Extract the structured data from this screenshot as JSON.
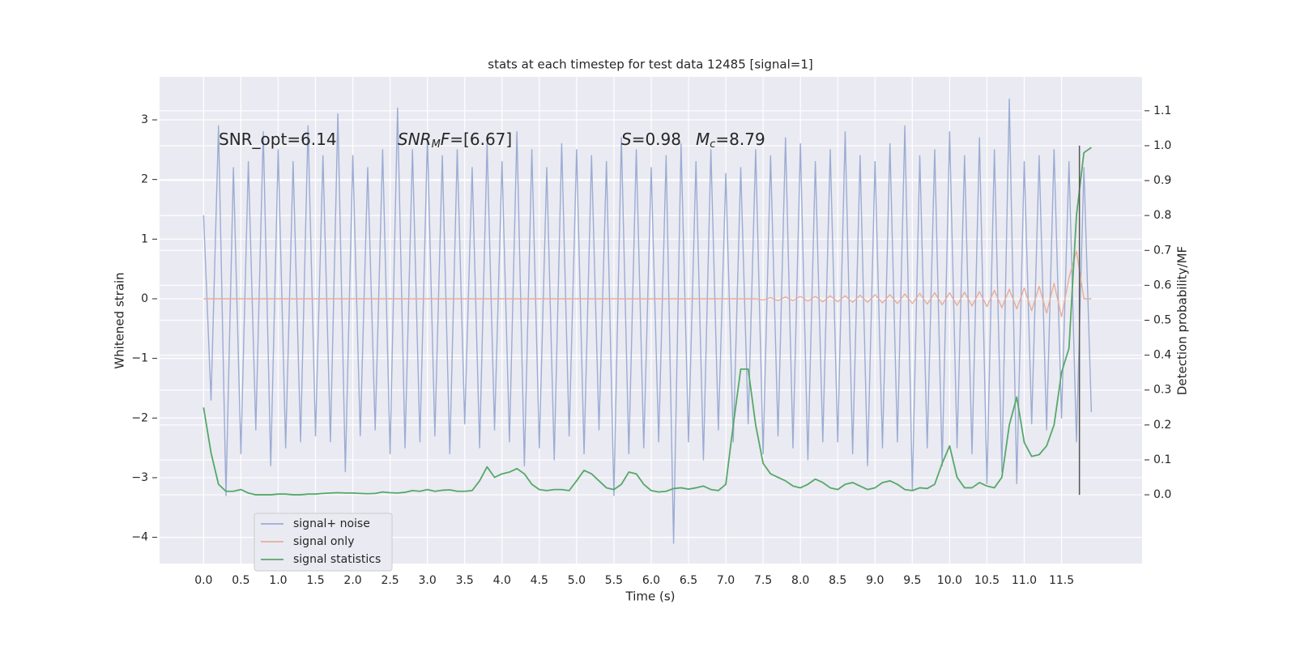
{
  "chart_data": {
    "type": "line",
    "title": "stats at each timestep for test data 12485 [signal=1]",
    "xlabel": "Time (s)",
    "ylabel": "Whitened strain",
    "y2label": "Detection probability/MF",
    "x": [
      0,
      0.1,
      0.2,
      0.3,
      0.4,
      0.5,
      0.6,
      0.7,
      0.8,
      0.9,
      1,
      1.1,
      1.2,
      1.3,
      1.4,
      1.5,
      1.6,
      1.7,
      1.8,
      1.9,
      2,
      2.1,
      2.2,
      2.3,
      2.4,
      2.5,
      2.6,
      2.7,
      2.8,
      2.9,
      3,
      3.1,
      3.2,
      3.3,
      3.4,
      3.5,
      3.6,
      3.7,
      3.8,
      3.9,
      4,
      4.1,
      4.2,
      4.3,
      4.4,
      4.5,
      4.6,
      4.7,
      4.8,
      4.9,
      5,
      5.1,
      5.2,
      5.3,
      5.4,
      5.5,
      5.6,
      5.7,
      5.8,
      5.9,
      6,
      6.1,
      6.2,
      6.3,
      6.4,
      6.5,
      6.6,
      6.7,
      6.8,
      6.9,
      7,
      7.1,
      7.2,
      7.3,
      7.4,
      7.5,
      7.6,
      7.7,
      7.8,
      7.9,
      8,
      8.1,
      8.2,
      8.3,
      8.4,
      8.5,
      8.6,
      8.7,
      8.8,
      8.9,
      9,
      9.1,
      9.2,
      9.3,
      9.4,
      9.5,
      9.6,
      9.7,
      9.8,
      9.9,
      10,
      10.1,
      10.2,
      10.3,
      10.4,
      10.5,
      10.6,
      10.7,
      10.8,
      10.9,
      11,
      11.1,
      11.2,
      11.3,
      11.4,
      11.5,
      11.6,
      11.7,
      11.8,
      11.9
    ],
    "series": [
      {
        "name": "signal+ noise",
        "color": "#9bacd3",
        "values": [
          1.4,
          -1.7,
          2.9,
          -3.3,
          2.2,
          -2.6,
          2.3,
          -2.2,
          2.8,
          -2.8,
          2.5,
          -2.5,
          2.3,
          -2.4,
          2.9,
          -2.3,
          2.4,
          -2.4,
          3.1,
          -2.9,
          2.4,
          -2.3,
          2.2,
          -2.2,
          2.5,
          -2.6,
          3.2,
          -2.5,
          2.5,
          -2.4,
          2.7,
          -2.3,
          2.4,
          -2.6,
          2.5,
          -2.1,
          2.2,
          -2.5,
          2.6,
          -2.2,
          2.3,
          -2.4,
          2.8,
          -2.8,
          2.5,
          -2.5,
          2.2,
          -2.7,
          2.6,
          -2.3,
          2.5,
          -2.6,
          2.4,
          -2.2,
          2.3,
          -3.3,
          2.7,
          -2.6,
          2.5,
          -2.5,
          2.2,
          -2.4,
          2.4,
          -4.1,
          2.6,
          -2.4,
          2.3,
          -2.7,
          2.5,
          -2.2,
          2.1,
          -2.4,
          2.2,
          -2.1,
          2.5,
          -2.6,
          2.4,
          -2.3,
          2.7,
          -2.5,
          2.6,
          -2.7,
          2.3,
          -2.4,
          2.5,
          -2.4,
          2.8,
          -2.6,
          2.4,
          -2.8,
          2.3,
          -2.5,
          2.6,
          -2.4,
          2.9,
          -3.2,
          2.4,
          -2.5,
          2.5,
          -2.8,
          2.8,
          -2.5,
          2.4,
          -2.6,
          2.7,
          -3.1,
          2.5,
          -2.9,
          3.35,
          -3.1,
          2.3,
          -2.1,
          2.4,
          -2.2,
          2.5,
          -2.0,
          2.3,
          -2.4,
          2.2,
          -1.9
        ]
      },
      {
        "name": "signal only",
        "color": "#e8ad99",
        "values": [
          0,
          0,
          0,
          0,
          0,
          0,
          0,
          0,
          0,
          0,
          0,
          0,
          0,
          0,
          0,
          0,
          0,
          0,
          0,
          0,
          0,
          0,
          0,
          0,
          0,
          0,
          0,
          0,
          0,
          0,
          0,
          0,
          0,
          0,
          0,
          0,
          0,
          0,
          0,
          0,
          0,
          0,
          0,
          0,
          0,
          0,
          0,
          0,
          0,
          0,
          0,
          0,
          0,
          0,
          0,
          0,
          0,
          0,
          0,
          0,
          0,
          0,
          0,
          0,
          0,
          0,
          0,
          0,
          0,
          0,
          0,
          0,
          0,
          0,
          0,
          -0.02,
          0.02,
          -0.03,
          0.03,
          -0.03,
          0.04,
          -0.04,
          0.04,
          -0.05,
          0.05,
          -0.05,
          0.05,
          -0.06,
          0.06,
          -0.06,
          0.07,
          -0.07,
          0.07,
          -0.08,
          0.08,
          -0.08,
          0.09,
          -0.09,
          0.1,
          -0.1,
          0.1,
          -0.11,
          0.11,
          -0.12,
          0.12,
          -0.13,
          0.14,
          -0.15,
          0.16,
          -0.17,
          0.18,
          -0.2,
          0.21,
          -0.24,
          0.26,
          -0.3,
          0.35,
          0.8,
          0,
          0
        ]
      },
      {
        "name": "signal statistics",
        "color": "#55a868",
        "axis": "y2",
        "values": [
          0.25,
          0.12,
          0.03,
          0.01,
          0.01,
          0.015,
          0.005,
          0,
          0,
          0,
          0.002,
          0.002,
          0,
          0,
          0.002,
          0.002,
          0.004,
          0.005,
          0.006,
          0.005,
          0.005,
          0.004,
          0.003,
          0.004,
          0.008,
          0.006,
          0.005,
          0.007,
          0.012,
          0.01,
          0.015,
          0.01,
          0.013,
          0.014,
          0.01,
          0.01,
          0.012,
          0.04,
          0.08,
          0.05,
          0.06,
          0.065,
          0.075,
          0.06,
          0.03,
          0.015,
          0.012,
          0.015,
          0.015,
          0.012,
          0.04,
          0.07,
          0.06,
          0.04,
          0.02,
          0.015,
          0.03,
          0.065,
          0.06,
          0.03,
          0.012,
          0.008,
          0.01,
          0.018,
          0.02,
          0.016,
          0.02,
          0.025,
          0.015,
          0.012,
          0.03,
          0.2,
          0.36,
          0.36,
          0.2,
          0.09,
          0.06,
          0.05,
          0.04,
          0.025,
          0.02,
          0.03,
          0.045,
          0.035,
          0.02,
          0.015,
          0.03,
          0.035,
          0.025,
          0.015,
          0.02,
          0.035,
          0.04,
          0.03,
          0.015,
          0.012,
          0.02,
          0.018,
          0.03,
          0.09,
          0.14,
          0.05,
          0.02,
          0.02,
          0.035,
          0.025,
          0.02,
          0.05,
          0.2,
          0.28,
          0.15,
          0.11,
          0.115,
          0.14,
          0.2,
          0.35,
          0.42,
          0.8,
          0.98,
          0.995
        ]
      }
    ],
    "vline": {
      "x": 11.74,
      "y2range": [
        0,
        1.0
      ],
      "color": "#555555"
    },
    "annotations": [
      [
        {
          "text": "SNR_opt=6.14"
        }
      ],
      [
        {
          "text": "SNR",
          "italic": true
        },
        {
          "text": "M",
          "italic": true,
          "sub": true
        },
        {
          "text": "F",
          "italic": true
        },
        {
          "text": "=[6.67]"
        }
      ],
      [
        {
          "text": "S",
          "italic": true
        },
        {
          "text": "=0.98"
        }
      ],
      [
        {
          "text": "M",
          "italic": true
        },
        {
          "text": "c",
          "italic": true,
          "sub": true
        },
        {
          "text": "=8.79"
        }
      ]
    ],
    "xlim": [
      -0.59,
      12.58
    ],
    "ylim": [
      -4.44,
      3.72
    ],
    "y2lim": [
      -0.197,
      1.197
    ],
    "xticks": [
      {
        "value": 0,
        "label": "0.0"
      },
      0.5,
      {
        "value": 1,
        "label": "1.0"
      },
      1.5,
      {
        "value": 2,
        "label": "2.0"
      },
      2.5,
      {
        "value": 3,
        "label": "3.0"
      },
      3.5,
      {
        "value": 4,
        "label": "4.0"
      },
      4.5,
      {
        "value": 5,
        "label": "5.0"
      },
      5.5,
      {
        "value": 6,
        "label": "6.0"
      },
      6.5,
      {
        "value": 7,
        "label": "7.0"
      },
      7.5,
      {
        "value": 8,
        "label": "8.0"
      },
      8.5,
      {
        "value": 9,
        "label": "9.0"
      },
      9.5,
      {
        "value": 10,
        "label": "10.0"
      },
      10.5,
      {
        "value": 11,
        "label": "11.0"
      },
      11.5
    ],
    "yticks": [
      {
        "value": -4,
        "label": "−4"
      },
      {
        "value": -3,
        "label": "−3"
      },
      {
        "value": -2,
        "label": "−2"
      },
      {
        "value": -1,
        "label": "−1"
      },
      0,
      1,
      2,
      3
    ],
    "y2ticks": [
      {
        "value": 0,
        "label": "0.0"
      },
      0.1,
      0.2,
      0.3,
      0.4,
      0.5,
      0.6,
      0.7,
      0.8,
      0.9,
      {
        "value": 1,
        "label": "1.0"
      },
      1.1
    ],
    "grid": true,
    "legend": "lower left"
  }
}
